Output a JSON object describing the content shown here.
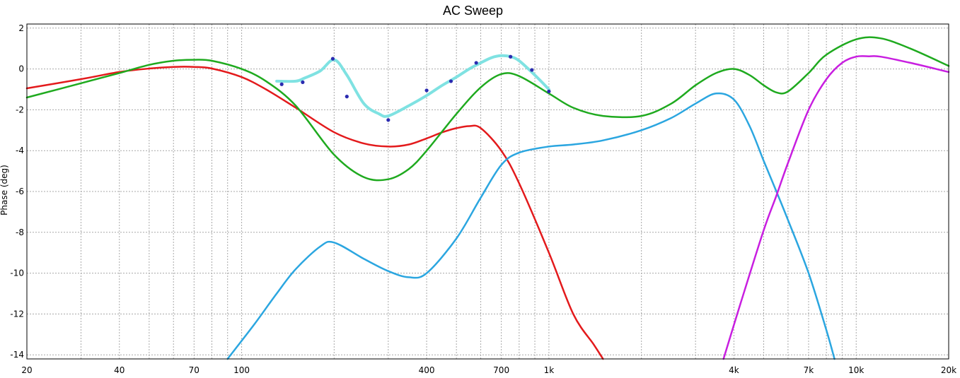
{
  "chart_data": {
    "type": "line",
    "title": "AC Sweep",
    "ylabel": "Phase (deg)",
    "xlabel": "",
    "xscale": "log",
    "xlim": [
      20,
      20000
    ],
    "ylim": [
      -14.2,
      2.2
    ],
    "grid": true,
    "x_ticks": [
      {
        "value": 20,
        "label": "20"
      },
      {
        "value": 40,
        "label": "40"
      },
      {
        "value": 70,
        "label": "70"
      },
      {
        "value": 100,
        "label": "100"
      },
      {
        "value": 400,
        "label": "400"
      },
      {
        "value": 700,
        "label": "700"
      },
      {
        "value": 1000,
        "label": "1k"
      },
      {
        "value": 4000,
        "label": "4k"
      },
      {
        "value": 7000,
        "label": "7k"
      },
      {
        "value": 10000,
        "label": "10k"
      },
      {
        "value": 20000,
        "label": "20k"
      }
    ],
    "y_ticks": [
      {
        "value": 2,
        "label": "2"
      },
      {
        "value": 0,
        "label": "0"
      },
      {
        "value": -2,
        "label": "-2"
      },
      {
        "value": -4,
        "label": "-4"
      },
      {
        "value": -6,
        "label": "-6"
      },
      {
        "value": -8,
        "label": "-8"
      },
      {
        "value": -10,
        "label": "-10"
      },
      {
        "value": -12,
        "label": "-12"
      },
      {
        "value": -14,
        "label": "-14"
      }
    ],
    "series": [
      {
        "color": "#e31a1c",
        "x": [
          20,
          30,
          40,
          50,
          60,
          70,
          80,
          100,
          120,
          150,
          200,
          250,
          300,
          350,
          400,
          450,
          500,
          550,
          600,
          700,
          800,
          1000,
          1200,
          1400,
          1500
        ],
        "y": [
          -0.95,
          -0.5,
          -0.15,
          0.02,
          0.1,
          0.1,
          0.02,
          -0.4,
          -1.0,
          -1.9,
          -3.1,
          -3.65,
          -3.8,
          -3.7,
          -3.4,
          -3.1,
          -2.9,
          -2.8,
          -2.9,
          -4.0,
          -5.6,
          -9.0,
          -12.0,
          -13.5,
          -14.2
        ]
      },
      {
        "color": "#1faa1f",
        "x": [
          20,
          30,
          40,
          50,
          60,
          70,
          80,
          100,
          120,
          150,
          200,
          250,
          300,
          350,
          400,
          500,
          600,
          700,
          800,
          1000,
          1200,
          1500,
          2000,
          2500,
          3000,
          3500,
          4000,
          4500,
          5000,
          5500,
          6000,
          7000,
          8000,
          10000,
          12000,
          15000,
          20000
        ],
        "y": [
          -1.4,
          -0.7,
          -0.2,
          0.2,
          0.4,
          0.45,
          0.4,
          0.0,
          -0.6,
          -1.8,
          -4.2,
          -5.3,
          -5.4,
          -4.9,
          -4.0,
          -2.2,
          -0.9,
          -0.25,
          -0.35,
          -1.2,
          -1.9,
          -2.3,
          -2.3,
          -1.7,
          -0.8,
          -0.2,
          0.0,
          -0.3,
          -0.8,
          -1.15,
          -1.1,
          -0.2,
          0.7,
          1.45,
          1.5,
          1.0,
          0.15
        ]
      },
      {
        "color": "#2ba6e0",
        "x": [
          90,
          110,
          130,
          150,
          180,
          200,
          250,
          300,
          350,
          400,
          500,
          600,
          700,
          800,
          1000,
          1200,
          1500,
          2000,
          2500,
          3000,
          3500,
          4000,
          4500,
          5000,
          5500,
          6000,
          7000,
          8000,
          8500
        ],
        "y": [
          -14.2,
          -12.5,
          -11.0,
          -9.8,
          -8.7,
          -8.5,
          -9.3,
          -9.9,
          -10.2,
          -10.0,
          -8.3,
          -6.3,
          -4.7,
          -4.1,
          -3.8,
          -3.7,
          -3.5,
          -3.0,
          -2.4,
          -1.7,
          -1.2,
          -1.5,
          -2.8,
          -4.5,
          -6.0,
          -7.4,
          -10.0,
          -12.8,
          -14.2
        ]
      },
      {
        "color": "#c81ee0",
        "x": [
          3700,
          4200,
          5000,
          5500,
          6000,
          7000,
          8000,
          9000,
          10000,
          11000,
          12000,
          15000,
          20000
        ],
        "y": [
          -14.2,
          -11.5,
          -7.9,
          -6.2,
          -4.6,
          -2.0,
          -0.5,
          0.3,
          0.6,
          0.62,
          0.6,
          0.3,
          -0.15
        ]
      },
      {
        "color": "#7fe2e2",
        "x": [
          130,
          150,
          160,
          180,
          200,
          220,
          250,
          280,
          300,
          350,
          400,
          450,
          500,
          550,
          600,
          650,
          700,
          750,
          800,
          900,
          1000
        ],
        "y": [
          -0.6,
          -0.6,
          -0.45,
          -0.1,
          0.45,
          -0.3,
          -1.7,
          -2.2,
          -2.3,
          -1.8,
          -1.3,
          -0.8,
          -0.4,
          0.0,
          0.3,
          0.55,
          0.65,
          0.6,
          0.4,
          -0.3,
          -1.0
        ],
        "markers": {
          "color": "#2b2bb0",
          "x": [
            135,
            158,
            198,
            220,
            300,
            400,
            480,
            580,
            750,
            880,
            1000
          ],
          "y": [
            -0.75,
            -0.65,
            0.5,
            -1.35,
            -2.5,
            -1.05,
            -0.6,
            0.3,
            0.6,
            -0.05,
            -1.1
          ]
        }
      }
    ]
  }
}
